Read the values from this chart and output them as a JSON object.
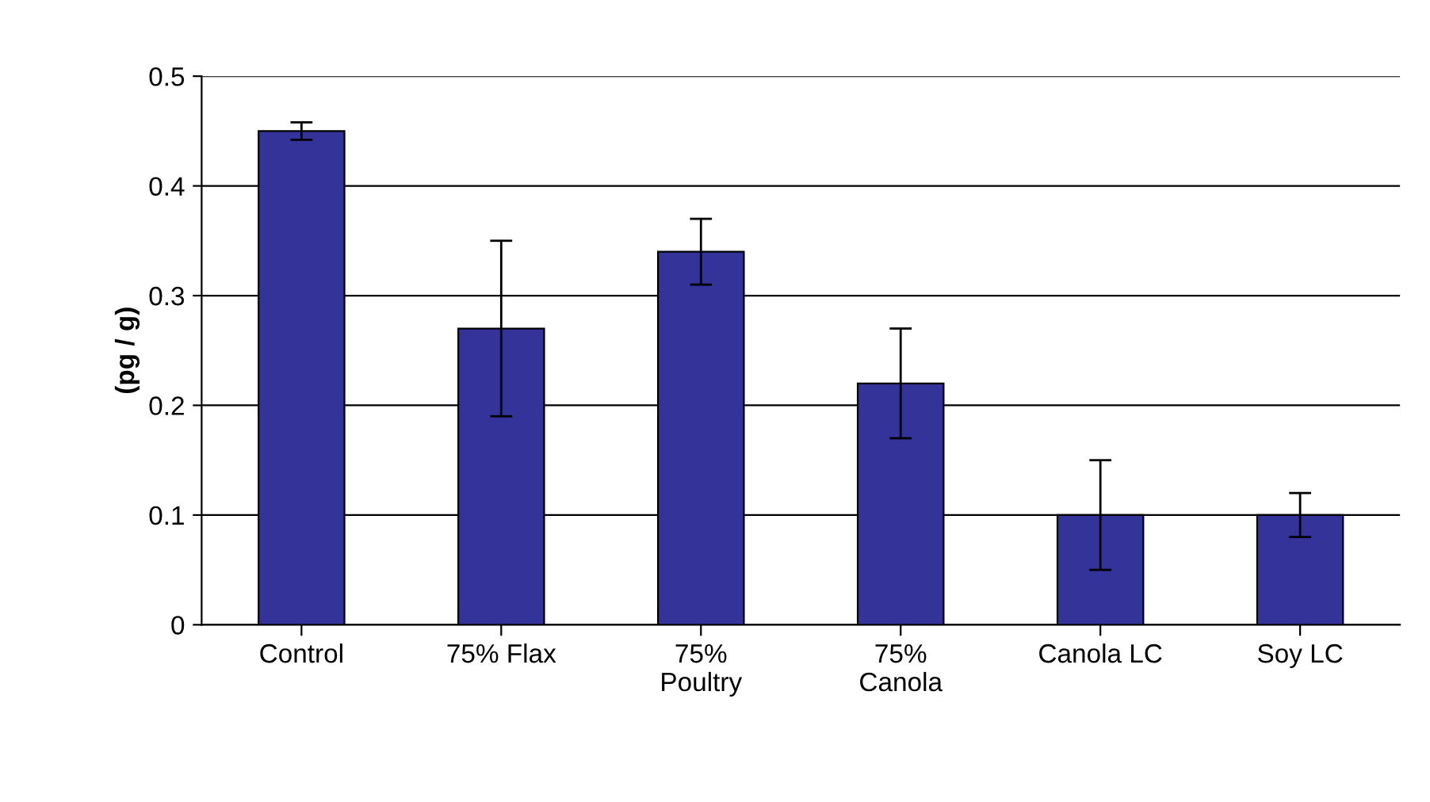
{
  "chart_data": {
    "type": "bar",
    "ylabel": "(pg / g)",
    "categories": [
      "Control",
      "75% Flax",
      "75%\nPoultry",
      "75%\nCanola",
      "Canola LC",
      "Soy LC"
    ],
    "values": [
      0.45,
      0.27,
      0.34,
      0.22,
      0.1,
      0.1
    ],
    "errors": [
      0.008,
      0.08,
      0.03,
      0.05,
      0.05,
      0.02
    ],
    "color": "#333399",
    "ylim": [
      0,
      0.5
    ],
    "yticks": [
      0,
      0.1,
      0.2,
      0.3,
      0.4,
      0.5
    ],
    "grid": "y",
    "legend": false
  }
}
